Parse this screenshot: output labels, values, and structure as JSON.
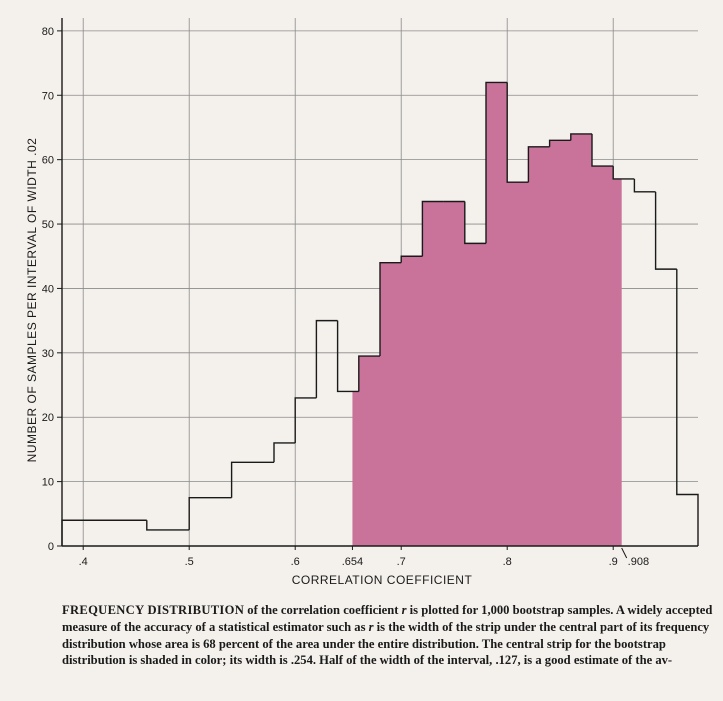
{
  "chart_data": {
    "type": "histogram",
    "xlabel": "CORRELATION COEFFICIENT",
    "ylabel": "NUMBER OF SAMPLES PER INTERVAL OF WIDTH .02",
    "xlim": [
      0.38,
      0.98
    ],
    "ylim": [
      0,
      82
    ],
    "x_ticks": [
      {
        "value": 0.4,
        "label": ".4"
      },
      {
        "value": 0.5,
        "label": ".5"
      },
      {
        "value": 0.6,
        "label": ".6"
      },
      {
        "value": 0.654,
        "label": ".654"
      },
      {
        "value": 0.7,
        "label": ".7"
      },
      {
        "value": 0.8,
        "label": ".8"
      },
      {
        "value": 0.9,
        "label": ".9"
      },
      {
        "value": 0.908,
        "label": ".908"
      }
    ],
    "y_ticks": [
      0,
      10,
      20,
      30,
      40,
      50,
      60,
      70,
      80
    ],
    "grid": true,
    "shaded_interval": [
      0.654,
      0.908
    ],
    "shade_color": "#c9729a",
    "bins": [
      {
        "x0": 0.38,
        "x1": 0.46,
        "count": 4
      },
      {
        "x0": 0.46,
        "x1": 0.5,
        "count": 2.5
      },
      {
        "x0": 0.5,
        "x1": 0.54,
        "count": 7.5
      },
      {
        "x0": 0.54,
        "x1": 0.58,
        "count": 13
      },
      {
        "x0": 0.58,
        "x1": 0.6,
        "count": 16
      },
      {
        "x0": 0.6,
        "x1": 0.62,
        "count": 23
      },
      {
        "x0": 0.62,
        "x1": 0.64,
        "count": 35
      },
      {
        "x0": 0.64,
        "x1": 0.66,
        "count": 24
      },
      {
        "x0": 0.66,
        "x1": 0.68,
        "count": 29.5
      },
      {
        "x0": 0.68,
        "x1": 0.7,
        "count": 44
      },
      {
        "x0": 0.7,
        "x1": 0.72,
        "count": 45
      },
      {
        "x0": 0.72,
        "x1": 0.74,
        "count": 53.5
      },
      {
        "x0": 0.74,
        "x1": 0.76,
        "count": 53.5
      },
      {
        "x0": 0.76,
        "x1": 0.78,
        "count": 47
      },
      {
        "x0": 0.78,
        "x1": 0.8,
        "count": 72
      },
      {
        "x0": 0.8,
        "x1": 0.82,
        "count": 56.5
      },
      {
        "x0": 0.82,
        "x1": 0.84,
        "count": 62
      },
      {
        "x0": 0.84,
        "x1": 0.86,
        "count": 63
      },
      {
        "x0": 0.86,
        "x1": 0.88,
        "count": 64
      },
      {
        "x0": 0.88,
        "x1": 0.9,
        "count": 59
      },
      {
        "x0": 0.9,
        "x1": 0.92,
        "count": 57
      },
      {
        "x0": 0.92,
        "x1": 0.94,
        "count": 55
      },
      {
        "x0": 0.94,
        "x1": 0.96,
        "count": 43
      },
      {
        "x0": 0.96,
        "x1": 0.98,
        "count": 8
      }
    ]
  },
  "caption": {
    "lead": "FREQUENCY DISTRIBUTION",
    "text_1": " of the correlation coefficient ",
    "symbol": "r",
    "text_2": " is plotted for 1,000 bootstrap samples. A widely accepted measure of the accuracy of a statistical estimator such as ",
    "symbol_2": "r",
    "text_3": " is the width of the strip under the central part of its frequency distribution whose area is 68 percent of the area under the entire distribution. The central strip for the bootstrap distribution is shaded in color; its width is .254. Half of the width of the interval, .127, is a good estimate of the av-"
  }
}
